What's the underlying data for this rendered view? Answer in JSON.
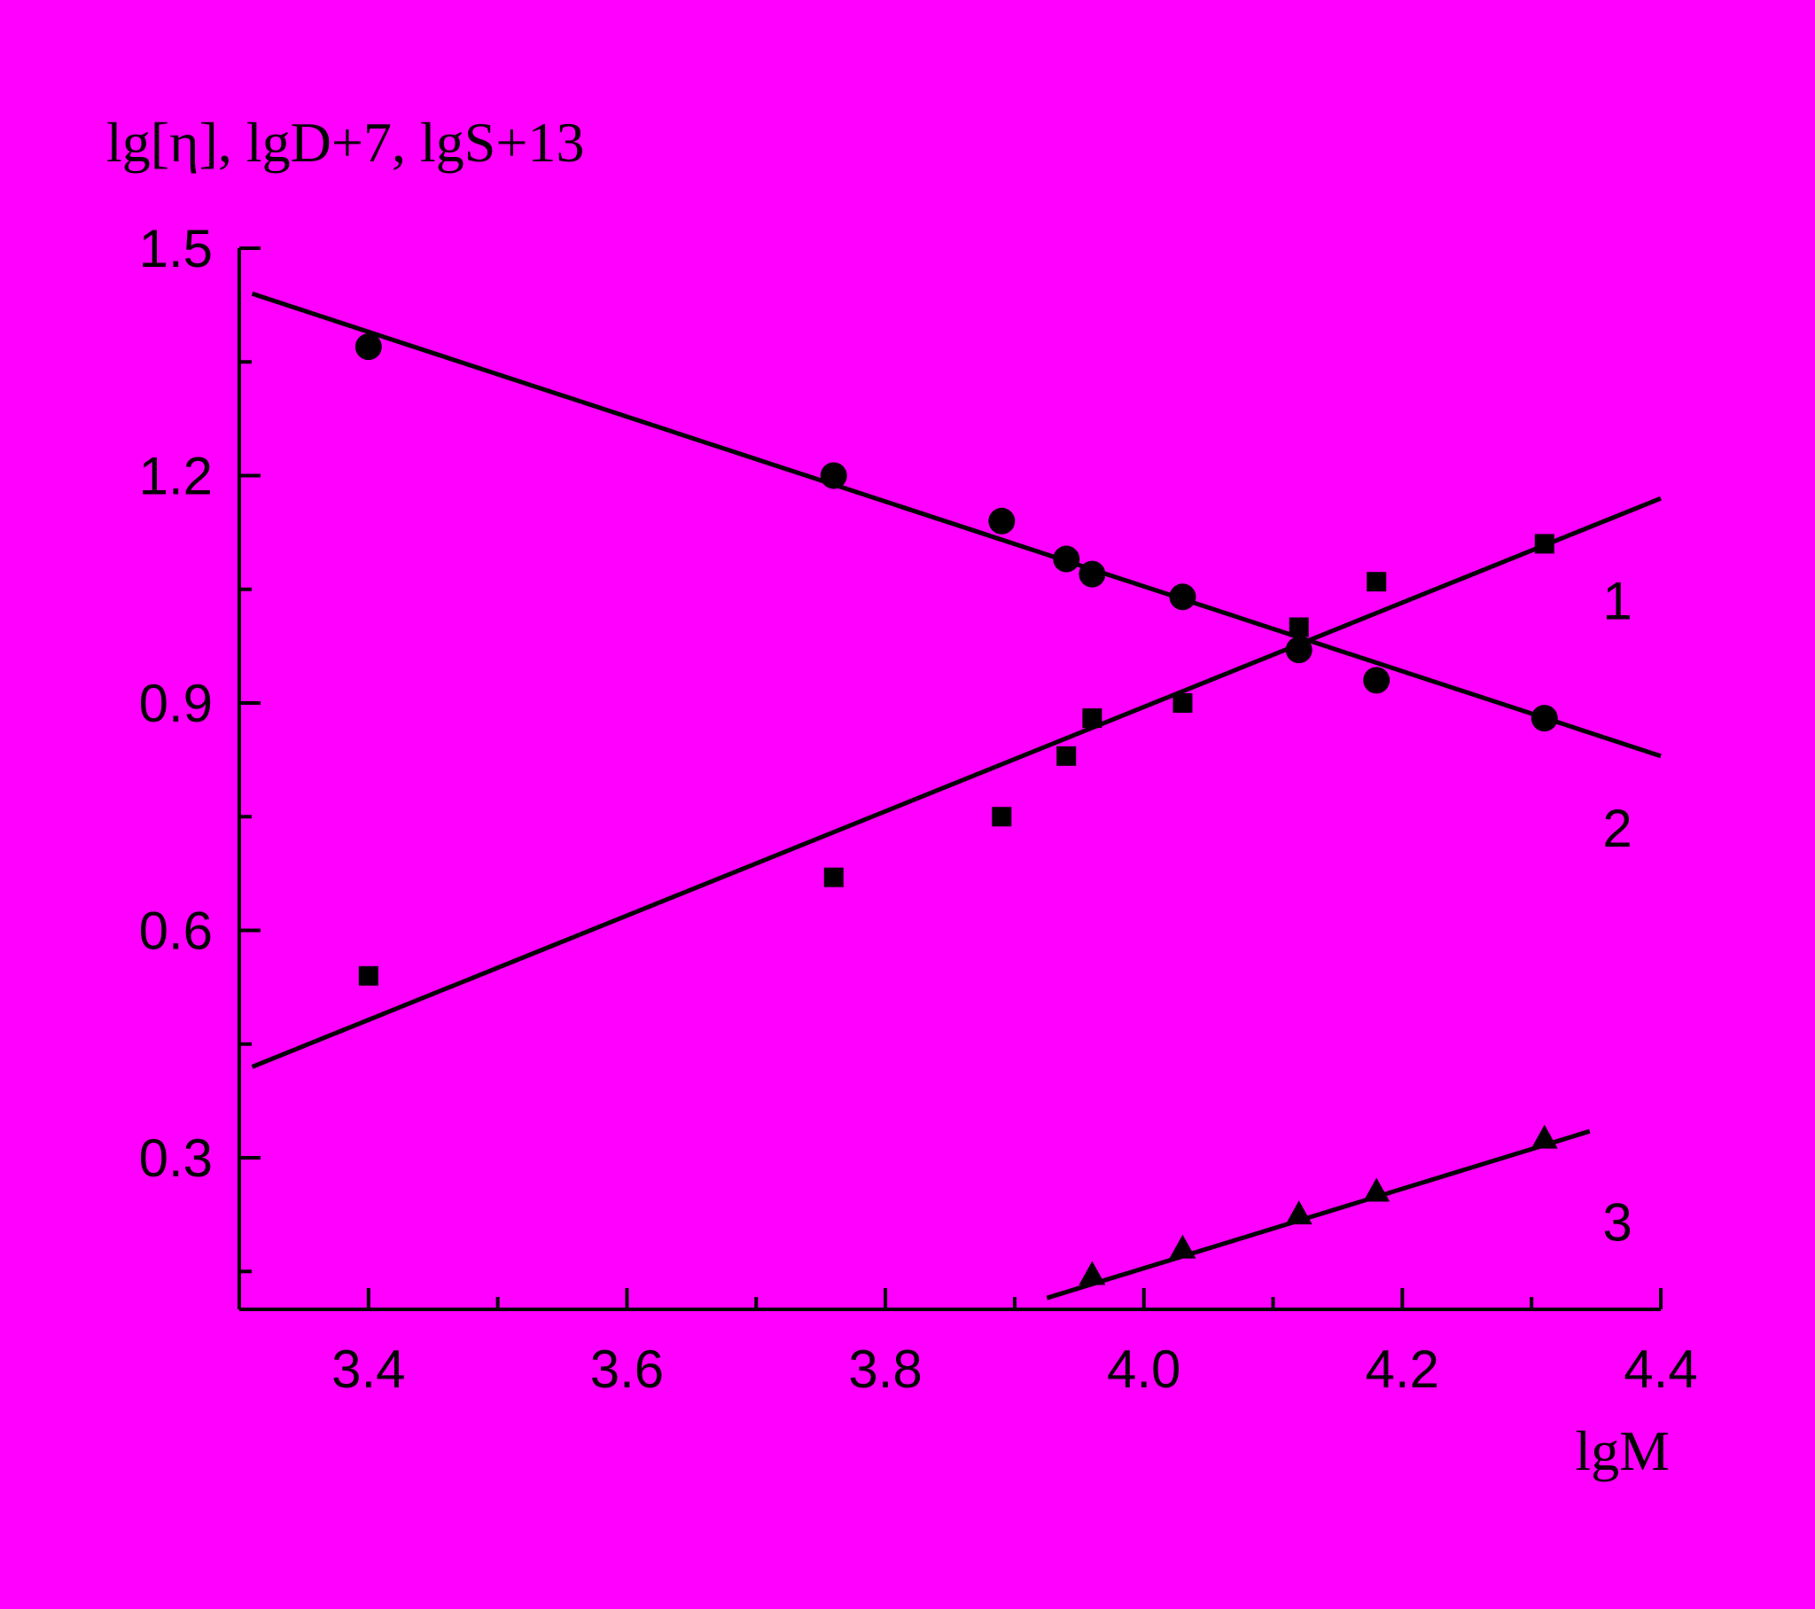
{
  "colors": {
    "background": "#FF00FF",
    "ink": "#000000"
  },
  "chart_data": {
    "type": "scatter",
    "title": "",
    "xlabel": "lgM",
    "ylabel": "lg[η], lgD+7, lgS+13",
    "xlim": [
      3.3,
      4.4
    ],
    "ylim": [
      0.1,
      1.5
    ],
    "x_ticks": [
      3.4,
      3.6,
      3.8,
      4.0,
      4.2,
      4.4
    ],
    "x_tick_labels": [
      "3.4",
      "3.6",
      "3.8",
      "4.0",
      "4.2",
      "4.4"
    ],
    "x_minor_ticks": [
      3.5,
      3.7,
      3.9,
      4.1,
      4.3
    ],
    "y_ticks": [
      0.3,
      0.6,
      0.9,
      1.2,
      1.5
    ],
    "y_tick_labels": [
      "0.3",
      "0.6",
      "0.9",
      "1.2",
      "1.5"
    ],
    "y_minor_ticks": [
      0.15,
      0.45,
      0.75,
      1.05,
      1.35
    ],
    "grid": false,
    "series": [
      {
        "label": "1",
        "marker": "circle",
        "points": [
          [
            3.4,
            1.37
          ],
          [
            3.76,
            1.2
          ],
          [
            3.89,
            1.14
          ],
          [
            3.94,
            1.09
          ],
          [
            3.96,
            1.07
          ],
          [
            4.03,
            1.04
          ],
          [
            4.12,
            0.97
          ],
          [
            4.18,
            0.93
          ],
          [
            4.31,
            0.88
          ]
        ],
        "fit": [
          [
            3.31,
            1.44
          ],
          [
            4.4,
            0.83
          ]
        ],
        "label_at": [
          4.355,
          1.035
        ]
      },
      {
        "label": "2",
        "marker": "square",
        "points": [
          [
            3.4,
            0.54
          ],
          [
            3.76,
            0.67
          ],
          [
            3.89,
            0.75
          ],
          [
            3.94,
            0.83
          ],
          [
            3.96,
            0.88
          ],
          [
            4.03,
            0.9
          ],
          [
            4.12,
            1.0
          ],
          [
            4.18,
            1.06
          ],
          [
            4.31,
            1.11
          ]
        ],
        "fit": [
          [
            3.31,
            0.42
          ],
          [
            4.4,
            1.17
          ]
        ],
        "label_at": [
          4.355,
          0.735
        ]
      },
      {
        "label": "3",
        "marker": "triangle",
        "points": [
          [
            3.96,
            0.145
          ],
          [
            4.03,
            0.18
          ],
          [
            4.12,
            0.225
          ],
          [
            4.18,
            0.255
          ],
          [
            4.31,
            0.325
          ]
        ],
        "fit": [
          [
            3.925,
            0.115
          ],
          [
            4.345,
            0.335
          ]
        ],
        "label_at": [
          4.355,
          0.215
        ]
      }
    ]
  }
}
